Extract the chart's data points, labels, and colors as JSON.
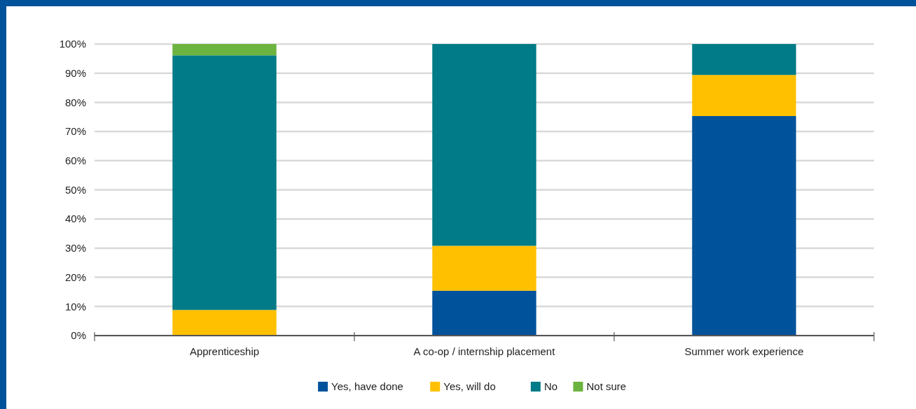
{
  "chart_data": {
    "type": "bar",
    "stacked": true,
    "categories": [
      "Apprenticeship",
      "A co-op / internship placement",
      "Summer work experience"
    ],
    "series": [
      {
        "name": "Yes, have done",
        "color": "#00529b",
        "values": [
          0,
          15.4,
          75.3
        ]
      },
      {
        "name": "Yes, will do",
        "color": "#ffc000",
        "values": [
          8.8,
          15.4,
          14.1
        ]
      },
      {
        "name": "No",
        "color": "#007b87",
        "values": [
          87.3,
          69.2,
          10.6
        ]
      },
      {
        "name": "Not sure",
        "color": "#6cb33f",
        "values": [
          3.9,
          0,
          0
        ]
      }
    ],
    "ylim": [
      0,
      100
    ],
    "yticks": [
      {
        "value": 0,
        "label": "0%"
      },
      {
        "value": 10,
        "label": "10%"
      },
      {
        "value": 20,
        "label": "20%"
      },
      {
        "value": 30,
        "label": "30%"
      },
      {
        "value": 40,
        "label": "40%"
      },
      {
        "value": 50,
        "label": "50%"
      },
      {
        "value": 60,
        "label": "60%"
      },
      {
        "value": 70,
        "label": "70%"
      },
      {
        "value": 80,
        "label": "80%"
      },
      {
        "value": 90,
        "label": "90%"
      },
      {
        "value": 100,
        "label": "100%"
      }
    ],
    "grid": "y",
    "legend": "bottom"
  }
}
